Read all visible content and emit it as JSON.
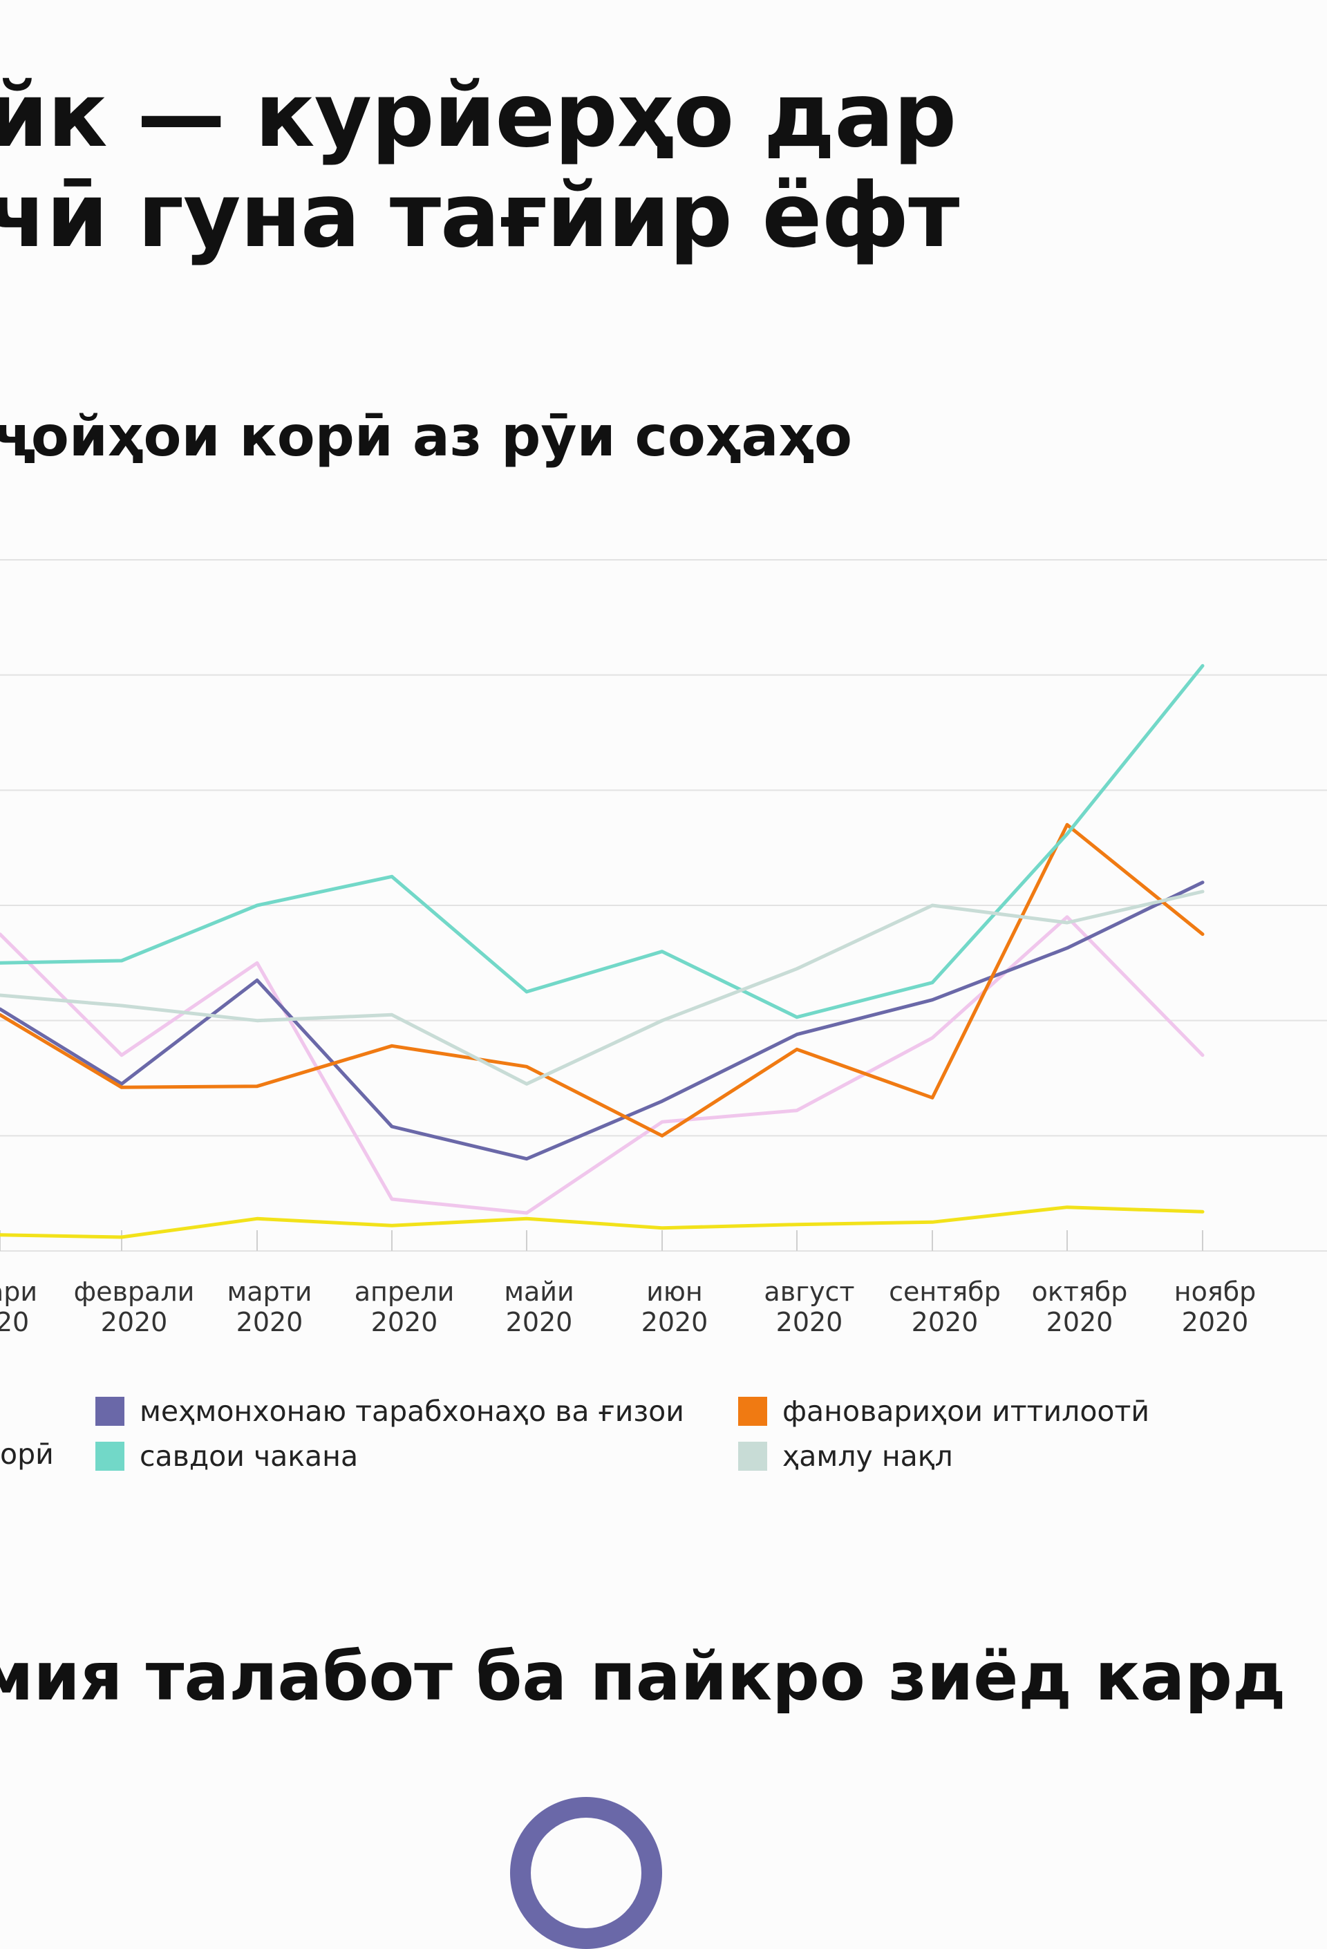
{
  "title": {
    "line1": "йк — курйерҳо дар",
    "line2": "чӣ гуна тағйир ёфт"
  },
  "subtitle": "ҷойҳои корӣ аз рӯи соҳаҳо",
  "headline": "мия талабот ба пайкро зиёд кард",
  "legend": [
    {
      "label": "орӣ",
      "color": "#f0c6ec"
    },
    {
      "label": "меҳмонхонаю тарабхонаҳо ва ғизои",
      "color": "#6a68a8"
    },
    {
      "label": "фановариҳои иттилоотӣ",
      "color": "#f07a12"
    },
    {
      "label": "савдои чакана",
      "color": "#72d8c8"
    },
    {
      "label": "ҳамлу нақл",
      "color": "#c8dcd6"
    }
  ],
  "logo": {
    "icon": "o-ring-logo-icon",
    "color": "#6a68a8"
  },
  "chart_data": {
    "type": "line",
    "categories": [
      [
        "ари",
        "20"
      ],
      [
        "феврали",
        "2020"
      ],
      [
        "марти",
        "2020"
      ],
      [
        "апрели",
        "2020"
      ],
      [
        "майи",
        "2020"
      ],
      [
        "июн",
        "2020"
      ],
      [
        "август",
        "2020"
      ],
      [
        "сентябр",
        "2020"
      ],
      [
        "октябр",
        "2020"
      ],
      [
        "ноябр",
        "2020"
      ]
    ],
    "ylim": [
      0,
      6
    ],
    "grid": true,
    "legend_position": "bottom",
    "series": [
      {
        "key": "pink",
        "color": "#f0c6ec",
        "values": [
          2.75,
          1.7,
          2.5,
          0.45,
          0.33,
          1.12,
          1.22,
          1.85,
          2.9,
          1.7
        ]
      },
      {
        "key": "hotels",
        "color": "#6a68a8",
        "values": [
          2.1,
          1.45,
          2.35,
          1.08,
          0.8,
          1.3,
          1.88,
          2.18,
          2.63,
          3.2
        ]
      },
      {
        "key": "it",
        "color": "#f07a12",
        "values": [
          2.05,
          1.42,
          1.43,
          1.78,
          1.6,
          1.0,
          1.75,
          1.33,
          3.7,
          2.75
        ]
      },
      {
        "key": "retail",
        "color": "#72d8c8",
        "values": [
          2.5,
          2.52,
          3.0,
          3.25,
          2.25,
          2.6,
          2.03,
          2.33,
          3.62,
          5.08
        ]
      },
      {
        "key": "transport",
        "color": "#c8dcd6",
        "values": [
          2.22,
          2.13,
          2.0,
          2.05,
          1.45,
          2.0,
          2.45,
          3.0,
          2.85,
          3.12
        ]
      },
      {
        "key": "yellow",
        "color": "#f2e21a",
        "values": [
          0.14,
          0.12,
          0.28,
          0.22,
          0.28,
          0.2,
          0.23,
          0.25,
          0.38,
          0.34
        ]
      }
    ]
  }
}
